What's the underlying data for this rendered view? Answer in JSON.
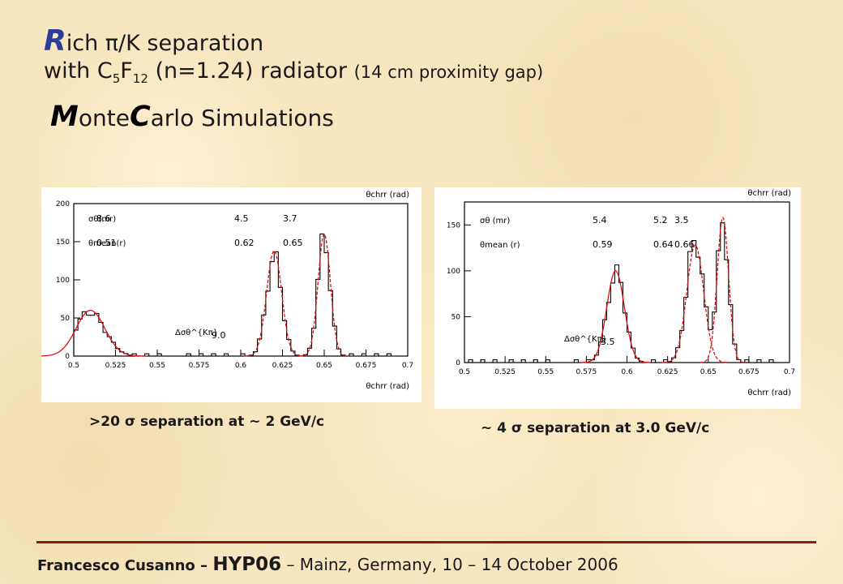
{
  "title": {
    "line1_cap": "R",
    "line1_rest": "ich π/K separation",
    "line2_a": "with C",
    "line2_sub1": "5",
    "line2_b": "F",
    "line2_sub2": "12",
    "line2_c": " (n=1.24) radiator ",
    "line2_small": "(14 cm proximity gap)",
    "line3_cap1": "M",
    "line3_a": "onte",
    "line3_cap2": "C",
    "line3_b": "arlo Simulations"
  },
  "footer": {
    "author_bold": "Francesco Cusanno",
    "dash1": " – ",
    "conference": "HYP06",
    "rest": " – Mainz, Germany, 10 – 14 October 2006"
  },
  "captions": {
    "left": ">20 σ separation at ~ 2 GeV/c",
    "right": "~ 4 σ separation at 3.0 GeV/c"
  },
  "chart_data": [
    {
      "type": "bar",
      "xlabel": "θchrr (rad)",
      "top_label": "θchrr (rad)",
      "xlim": [
        0.5,
        0.7
      ],
      "ylim": [
        0,
        200
      ],
      "xticks": [
        "0.5",
        "0.525",
        "0.55",
        "0.575",
        "0.6",
        "0.625",
        "0.65",
        "0.675",
        "0.7"
      ],
      "yticks": [
        "0",
        "50",
        "100",
        "150",
        "200"
      ],
      "annotations": {
        "sigma_label": "σθ(mr)",
        "mean_label": "θmean(r)",
        "peaks_sigma": [
          "8.6",
          "4.5",
          "3.7"
        ],
        "peaks_mean": [
          "0.51",
          "0.62",
          "0.65"
        ],
        "separation_label": "Δσθ^{Kπ}",
        "separation_value": "9.0"
      },
      "peaks": [
        {
          "mean": 0.51,
          "sigma": 0.0086,
          "amplitude": 60
        },
        {
          "mean": 0.62,
          "sigma": 0.0045,
          "amplitude": 138
        },
        {
          "mean": 0.65,
          "sigma": 0.0037,
          "amplitude": 160
        }
      ]
    },
    {
      "type": "bar",
      "xlabel": "θchrr (rad)",
      "top_label": "θchrr (rad)",
      "xlim": [
        0.5,
        0.7
      ],
      "ylim": [
        0,
        175
      ],
      "xticks": [
        "0.5",
        "0.525",
        "0.55",
        "0.575",
        "0.6",
        "0.625",
        "0.65",
        "0.675",
        "0.7"
      ],
      "yticks": [
        "0",
        "50",
        "100",
        "150"
      ],
      "annotations": {
        "sigma_label": "σθ (mr)",
        "mean_label": "θmean (r)",
        "peaks_sigma": [
          "5.4",
          "5.2",
          "3.5"
        ],
        "peaks_mean": [
          "0.59",
          "0.64",
          "0.66"
        ],
        "separation_label": "Δσθ^{Kπ}",
        "separation_value": "3.5"
      },
      "peaks": [
        {
          "mean": 0.593,
          "sigma": 0.0054,
          "amplitude": 100
        },
        {
          "mean": 0.642,
          "sigma": 0.0052,
          "amplitude": 128
        },
        {
          "mean": 0.659,
          "sigma": 0.0035,
          "amplitude": 158
        }
      ]
    }
  ]
}
